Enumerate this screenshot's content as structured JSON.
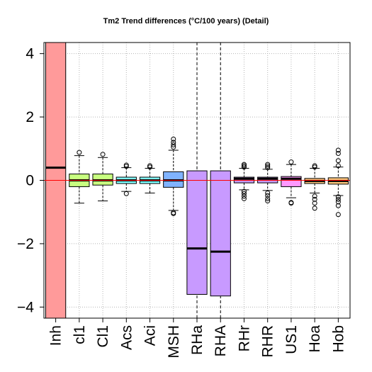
{
  "chart_data": {
    "type": "box",
    "title": "Tm2 Trend differences (°C/100 years) (Detail)",
    "xlabel": "",
    "ylabel": "",
    "ylim": [
      -4.35,
      4.35
    ],
    "yticks": [
      -4,
      -2,
      0,
      2,
      4
    ],
    "grid": true,
    "reference_line": {
      "y": 0,
      "color": "#ff0000"
    },
    "categories": [
      "Inh",
      "cl1",
      "Cl1",
      "Acs",
      "Aci",
      "MSH",
      "RHa",
      "RHA",
      "RHr",
      "RHR",
      "US1",
      "Hoa",
      "Hob"
    ],
    "boxes": [
      {
        "q1": -4.35,
        "median": 0.4,
        "q3": 4.35,
        "whisker_low": null,
        "whisker_high": null,
        "outliers": [],
        "color": "#ff9a9a"
      },
      {
        "q1": -0.2,
        "median": 0.0,
        "q3": 0.2,
        "whisker_low": -0.72,
        "whisker_high": 0.78,
        "outliers": [
          0.88
        ],
        "color": "#c8ff80"
      },
      {
        "q1": -0.15,
        "median": 0.0,
        "q3": 0.2,
        "whisker_low": -0.65,
        "whisker_high": 0.72,
        "outliers": [
          0.82
        ],
        "color": "#c8ff80"
      },
      {
        "q1": -0.1,
        "median": 0.0,
        "q3": 0.1,
        "whisker_low": -0.35,
        "whisker_high": 0.4,
        "outliers": [
          0.44,
          0.48,
          -0.42
        ],
        "color": "#80ffff"
      },
      {
        "q1": -0.1,
        "median": 0.0,
        "q3": 0.1,
        "whisker_low": -0.4,
        "whisker_high": 0.38,
        "outliers": [
          0.42,
          0.46
        ],
        "color": "#80ffff"
      },
      {
        "q1": -0.22,
        "median": 0.0,
        "q3": 0.27,
        "whisker_low": -0.95,
        "whisker_high": 0.95,
        "outliers": [
          1.05,
          1.12,
          1.2,
          1.3,
          -1.02,
          -1.05
        ],
        "color": "#80b3ff"
      },
      {
        "q1": -3.6,
        "median": -2.15,
        "q3": 0.3,
        "whisker_low": null,
        "whisker_high": null,
        "outliers": [],
        "color": "#c89aff",
        "dashed_axis": true
      },
      {
        "q1": -3.65,
        "median": -2.25,
        "q3": 0.3,
        "whisker_low": null,
        "whisker_high": null,
        "outliers": [],
        "color": "#c89aff",
        "dashed_axis": true
      },
      {
        "q1": -0.08,
        "median": 0.05,
        "q3": 0.1,
        "whisker_low": -0.3,
        "whisker_high": 0.38,
        "outliers": [
          0.42,
          0.46,
          0.5,
          -0.35,
          -0.42,
          -0.5,
          -0.58
        ],
        "color": "#c89aff"
      },
      {
        "q1": -0.08,
        "median": 0.05,
        "q3": 0.1,
        "whisker_low": -0.32,
        "whisker_high": 0.35,
        "outliers": [
          0.4,
          0.45,
          0.5,
          -0.4,
          -0.48,
          -0.58,
          -0.65
        ],
        "color": "#c89aff"
      },
      {
        "q1": -0.2,
        "median": 0.05,
        "q3": 0.12,
        "whisker_low": -0.55,
        "whisker_high": 0.5,
        "outliers": [
          0.58,
          -0.7,
          -0.72
        ],
        "color": "#ff99ff"
      },
      {
        "q1": -0.1,
        "median": -0.02,
        "q3": 0.06,
        "whisker_low": -0.4,
        "whisker_high": 0.38,
        "outliers": [
          0.42,
          0.46,
          -0.5,
          -0.6,
          -0.72,
          -0.88
        ],
        "color": "#ffcc80"
      },
      {
        "q1": -0.12,
        "median": -0.02,
        "q3": 0.08,
        "whisker_low": -0.48,
        "whisker_high": 0.42,
        "outliers": [
          0.46,
          0.62,
          0.85,
          0.95,
          -0.52,
          -0.6,
          -0.68,
          -0.8,
          -1.08
        ],
        "color": "#ffcc80"
      }
    ]
  }
}
